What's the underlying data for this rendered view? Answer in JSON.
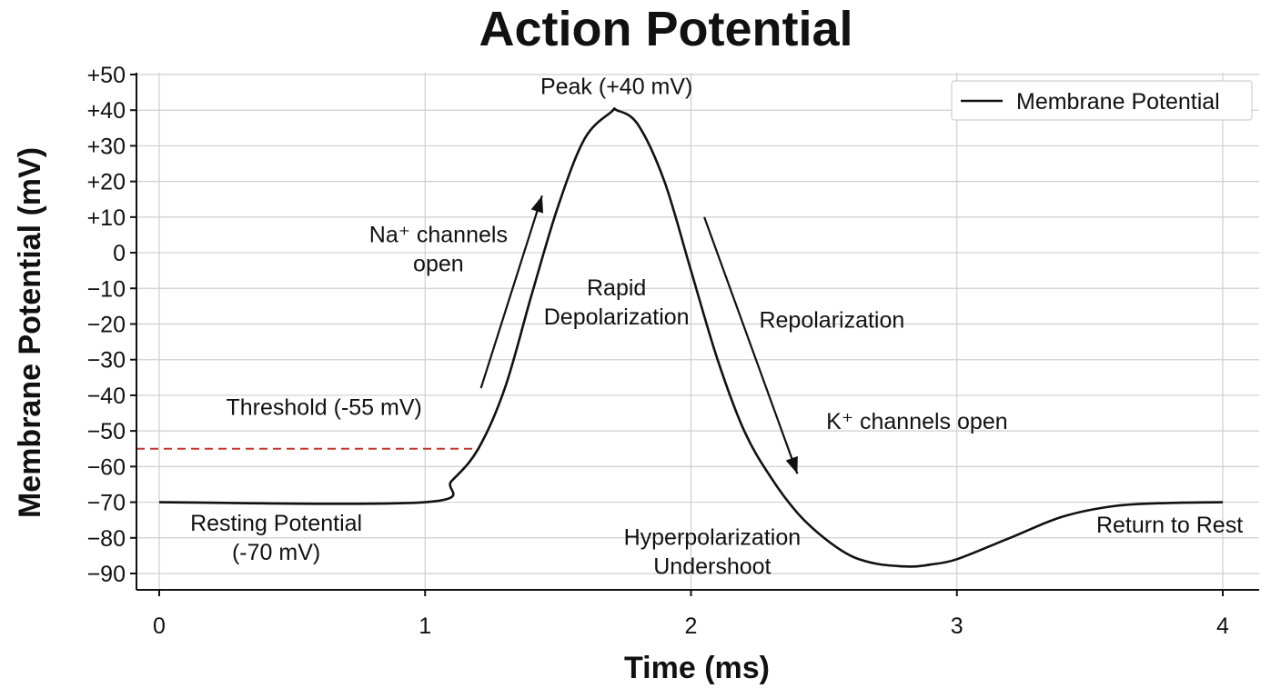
{
  "chart_data": {
    "type": "line",
    "title": "Action Potential",
    "xlabel": "Time (ms)",
    "ylabel": "Membrane Potential (mV)",
    "xlim": [
      0,
      4
    ],
    "ylim": [
      -90,
      50
    ],
    "x_ticks": [
      "0",
      "1",
      "2",
      "3",
      "4"
    ],
    "y_ticks": [
      "+50",
      "+40",
      "+30",
      "+20",
      "+10",
      "0",
      "−10",
      "−20",
      "−30",
      "−40",
      "−50",
      "−60",
      "−70",
      "−80",
      "−90"
    ],
    "y_tick_values": [
      50,
      40,
      30,
      20,
      10,
      0,
      -10,
      -20,
      -30,
      -40,
      -50,
      -60,
      -70,
      -80,
      -90
    ],
    "grid": true,
    "legend": {
      "placement": "top-right",
      "entries": [
        "Membrane Potential"
      ]
    },
    "threshold": {
      "y": -55,
      "x_end": 1.2,
      "color": "#c0392b"
    },
    "series": [
      {
        "name": "Membrane Potential",
        "color": "#111111",
        "x": [
          0,
          1.0,
          1.1,
          1.2,
          1.3,
          1.4,
          1.5,
          1.6,
          1.7,
          1.72,
          1.8,
          1.9,
          2.0,
          2.1,
          2.2,
          2.3,
          2.4,
          2.5,
          2.6,
          2.7,
          2.8,
          2.85,
          2.9,
          3.0,
          3.2,
          3.4,
          3.6,
          3.8,
          4.0
        ],
        "y": [
          -70,
          -70,
          -64,
          -55,
          -38,
          -12,
          13,
          32,
          39.5,
          40,
          36,
          20,
          -5,
          -30,
          -50,
          -63,
          -73,
          -80,
          -85,
          -87.3,
          -88,
          -88,
          -87.5,
          -86,
          -80,
          -74,
          -71,
          -70.2,
          -70
        ]
      }
    ],
    "annotations": [
      {
        "lines": [
          "Peak (+40 mV)"
        ],
        "x": 1.72,
        "y": 44.5
      },
      {
        "lines": [
          "Na⁺ channels",
          "open"
        ],
        "x": 1.05,
        "y": 3
      },
      {
        "lines": [
          "Rapid",
          "Depolarization"
        ],
        "x": 1.72,
        "y": -12
      },
      {
        "lines": [
          "Repolarization"
        ],
        "x": 2.53,
        "y": -21
      },
      {
        "lines": [
          "Threshold (-55 mV)"
        ],
        "x": 0.62,
        "y": -45.5
      },
      {
        "lines": [
          "K⁺ channels open"
        ],
        "x": 2.85,
        "y": -49.5
      },
      {
        "lines": [
          "Resting Potential",
          "(-70 mV)"
        ],
        "x": 0.44,
        "y": -78
      },
      {
        "lines": [
          "Hyperpolarization",
          "Undershoot"
        ],
        "x": 2.08,
        "y": -82
      },
      {
        "lines": [
          "Return to Rest"
        ],
        "x": 3.8,
        "y": -78.5
      }
    ],
    "arrows": [
      {
        "from": [
          1.21,
          -38
        ],
        "to": [
          1.44,
          16
        ]
      },
      {
        "from": [
          2.05,
          10
        ],
        "to": [
          2.4,
          -62
        ]
      }
    ]
  }
}
